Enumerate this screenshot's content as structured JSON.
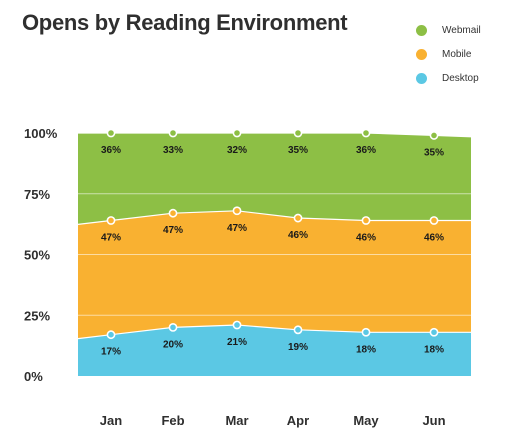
{
  "title": "Opens by Reading Environment",
  "chart_data": {
    "type": "area",
    "stacked": true,
    "percent": true,
    "categories": [
      "Jan",
      "Feb",
      "Mar",
      "Apr",
      "May",
      "Jun"
    ],
    "series": [
      {
        "name": "Desktop",
        "values": [
          17,
          20,
          21,
          19,
          18,
          18
        ],
        "labels": [
          "17%",
          "20%",
          "21%",
          "19%",
          "18%",
          "18%"
        ],
        "color": "#5bc8e4"
      },
      {
        "name": "Mobile",
        "values": [
          47,
          47,
          47,
          46,
          46,
          46
        ],
        "labels": [
          "47%",
          "47%",
          "47%",
          "46%",
          "46%",
          "46%"
        ],
        "color": "#f9b131"
      },
      {
        "name": "Webmail",
        "values": [
          36,
          33,
          32,
          35,
          36,
          35
        ],
        "labels": [
          "36%",
          "33%",
          "32%",
          "35%",
          "36%",
          "35%"
        ],
        "color": "#8dbf45"
      }
    ],
    "yticks": [
      "0%",
      "25%",
      "50%",
      "75%",
      "100%"
    ],
    "ylim": [
      0,
      100
    ],
    "grid": true,
    "legend_position": "top-right"
  },
  "legend": [
    {
      "label": "Webmail",
      "color": "#8dbf45"
    },
    {
      "label": "Mobile",
      "color": "#f9b131"
    },
    {
      "label": "Desktop",
      "color": "#5bc8e4"
    }
  ]
}
